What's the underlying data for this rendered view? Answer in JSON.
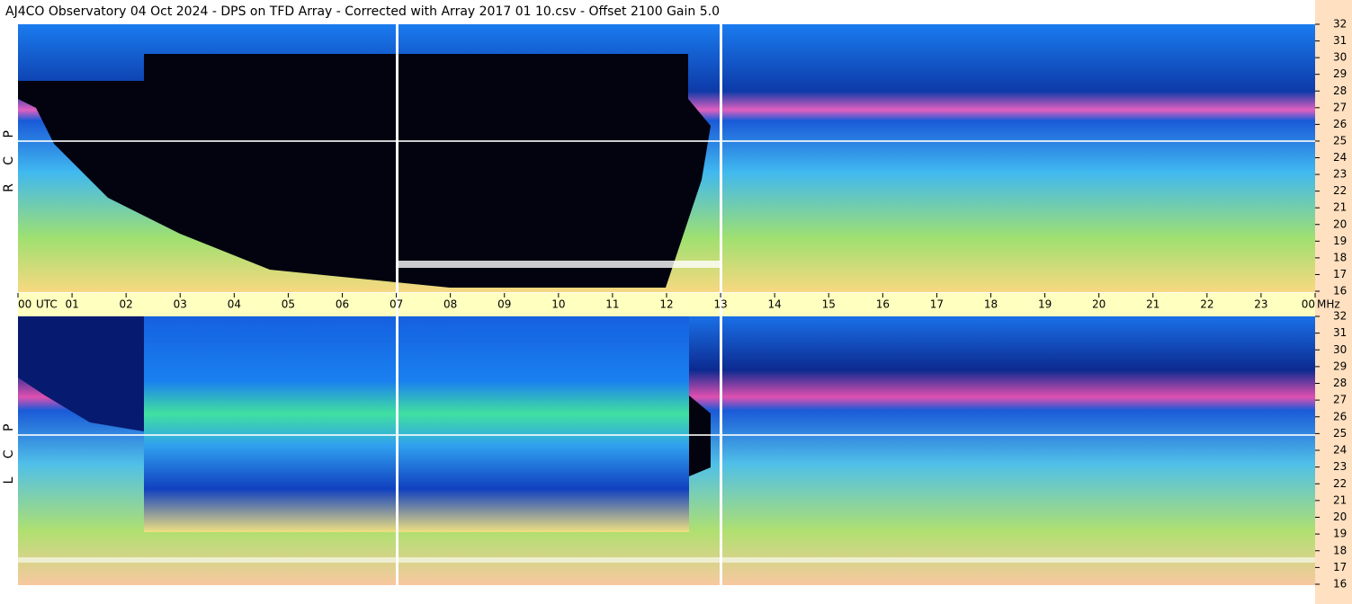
{
  "chart_data": {
    "type": "spectrogram",
    "title": "AJ4CO Observatory  04 Oct 2024  -  DPS on TFD Array  -  Corrected with Array 2017 01 10.csv  -  Offset 2100  Gain 5.0",
    "x_unit": "UTC",
    "y_unit": "MHz",
    "xlim": [
      0,
      24
    ],
    "xticks": [
      {
        "value": 0,
        "label": "00"
      },
      {
        "value": 1,
        "label": "01"
      },
      {
        "value": 2,
        "label": "02"
      },
      {
        "value": 3,
        "label": "03"
      },
      {
        "value": 4,
        "label": "04"
      },
      {
        "value": 5,
        "label": "05"
      },
      {
        "value": 6,
        "label": "06"
      },
      {
        "value": 7,
        "label": "07"
      },
      {
        "value": 8,
        "label": "08"
      },
      {
        "value": 9,
        "label": "09"
      },
      10,
      11,
      12,
      13,
      14,
      15,
      16,
      17,
      18,
      19,
      20,
      21,
      22,
      23,
      {
        "value": 24,
        "label": "00"
      }
    ],
    "panels": [
      {
        "label": "R C P",
        "ylim": [
          16,
          32
        ],
        "yticks": [
          16,
          17,
          18,
          19,
          20,
          21,
          22,
          23,
          24,
          25,
          26,
          27,
          28,
          29,
          30,
          31,
          32
        ]
      },
      {
        "label": "L C P",
        "ylim": [
          16,
          32
        ],
        "yticks": [
          16,
          17,
          18,
          19,
          20,
          21,
          22,
          23,
          24,
          25,
          26,
          27,
          28,
          29,
          30,
          31,
          32
        ]
      }
    ]
  }
}
